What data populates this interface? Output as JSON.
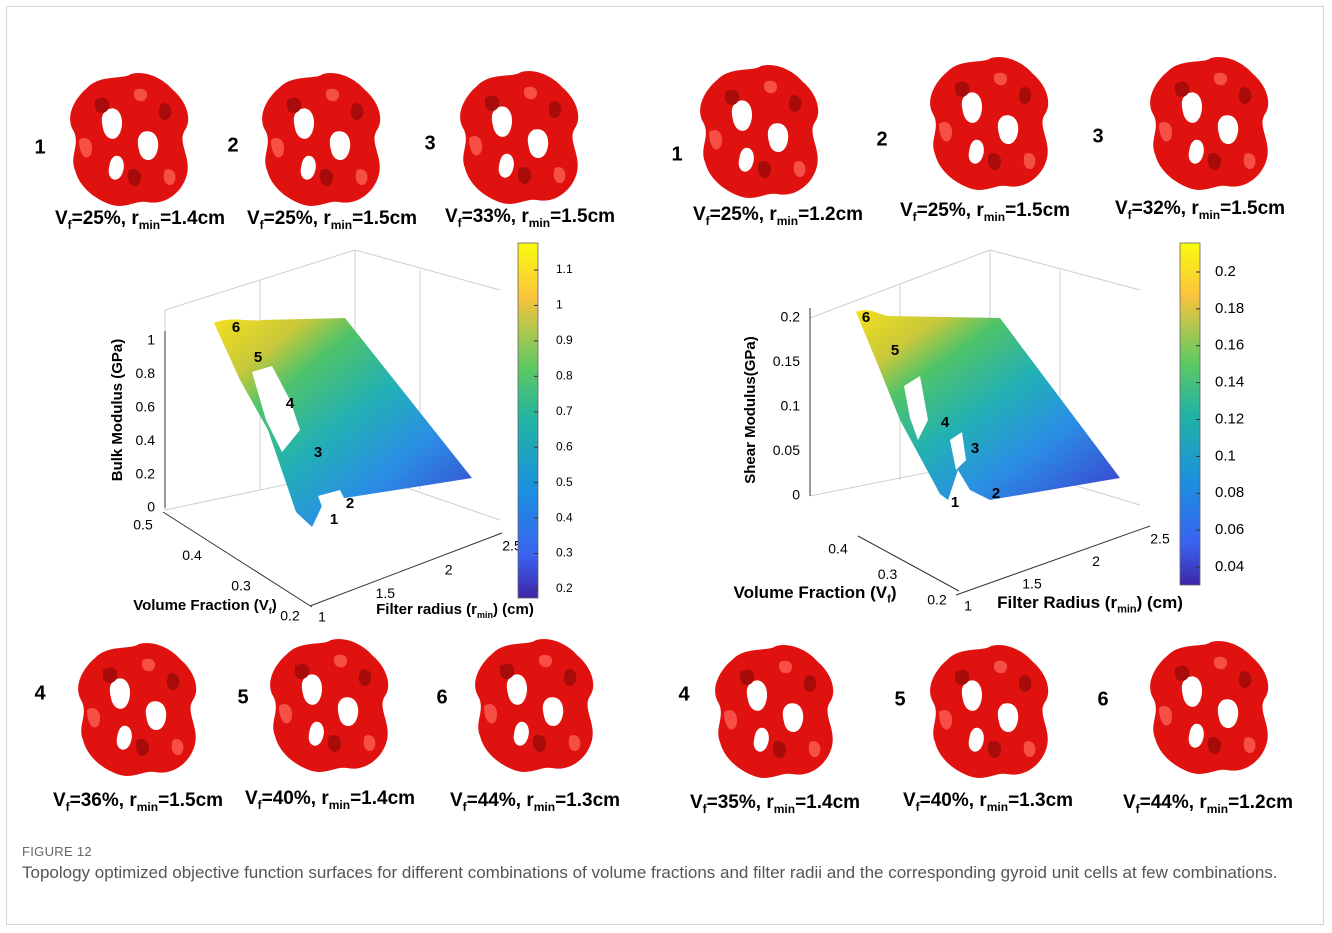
{
  "figure": {
    "panels": [
      {
        "cells": [
          {
            "number": "1",
            "label": [
              "V",
              "f",
              "=25%, r",
              "min",
              "=1.4cm"
            ]
          },
          {
            "number": "2",
            "label": [
              "V",
              "f",
              "=25%, r",
              "min",
              "=1.5cm"
            ]
          },
          {
            "number": "3",
            "label": [
              "V",
              "f",
              "=33%, r",
              "min",
              "=1.5cm"
            ]
          },
          {
            "number": "4",
            "label": [
              "V",
              "f",
              "=36%, r",
              "min",
              "=1.5cm"
            ]
          },
          {
            "number": "5",
            "label": [
              "V",
              "f",
              "=40%, r",
              "min",
              "=1.4cm"
            ]
          },
          {
            "number": "6",
            "label": [
              "V",
              "f",
              "=44%, r",
              "min",
              "=1.3cm"
            ]
          }
        ],
        "plot": {
          "z_label": [
            "Bulk Modulus (GPa)"
          ],
          "x_label": [
            "Volume Fraction (V",
            "f",
            ")"
          ],
          "y_label": [
            "Filter radius (r",
            "min",
            ") (cm)"
          ],
          "z_ticks": [
            0,
            0.2,
            0.4,
            0.6,
            0.8,
            1
          ],
          "x_ticks": [
            0.5,
            0.4,
            0.3,
            0.2
          ],
          "y_ticks": [
            1,
            1.5,
            2,
            2.5
          ],
          "colorbar_ticks": [
            1.1,
            1,
            0.9,
            0.8,
            0.7,
            0.6,
            0.5,
            0.4,
            0.3,
            0.2
          ],
          "point_labels": [
            "1",
            "2",
            "3",
            "4",
            "5",
            "6"
          ]
        }
      },
      {
        "cells": [
          {
            "number": "1",
            "label": [
              "V",
              "f",
              "=25%, r",
              "min",
              "=1.2cm"
            ]
          },
          {
            "number": "2",
            "label": [
              "V",
              "f",
              "=25%, r",
              "min",
              "=1.5cm"
            ]
          },
          {
            "number": "3",
            "label": [
              "V",
              "f",
              "=32%, r",
              "min",
              "=1.5cm"
            ]
          },
          {
            "number": "4",
            "label": [
              "V",
              "f",
              "=35%, r",
              "min",
              "=1.4cm"
            ]
          },
          {
            "number": "5",
            "label": [
              "V",
              "f",
              "=40%, r",
              "min",
              "=1.3cm"
            ]
          },
          {
            "number": "6",
            "label": [
              "V",
              "f",
              "=44%, r",
              "min",
              "=1.2cm"
            ]
          }
        ],
        "plot": {
          "z_label": [
            "Shear Modulus(GPa)"
          ],
          "x_label": [
            "Volume Fraction (V",
            "f",
            ")"
          ],
          "y_label": [
            "Filter Radius (r",
            "min",
            ") (cm)"
          ],
          "z_ticks": [
            0,
            0.05,
            0.1,
            0.15,
            0.2
          ],
          "x_ticks": [
            0.4,
            0.3,
            0.2
          ],
          "y_ticks": [
            1,
            1.5,
            2,
            2.5
          ],
          "colorbar_ticks": [
            0.2,
            0.18,
            0.16,
            0.14,
            0.12,
            0.1,
            0.08,
            0.06,
            0.04
          ],
          "point_labels": [
            "1",
            "2",
            "3",
            "4",
            "5",
            "6"
          ]
        }
      }
    ],
    "caption": {
      "label": "FIGURE 12",
      "text": "Topology optimized objective function surfaces for different combinations of volume fractions and filter radii and the corresponding gyroid unit cells at few combinations."
    }
  }
}
